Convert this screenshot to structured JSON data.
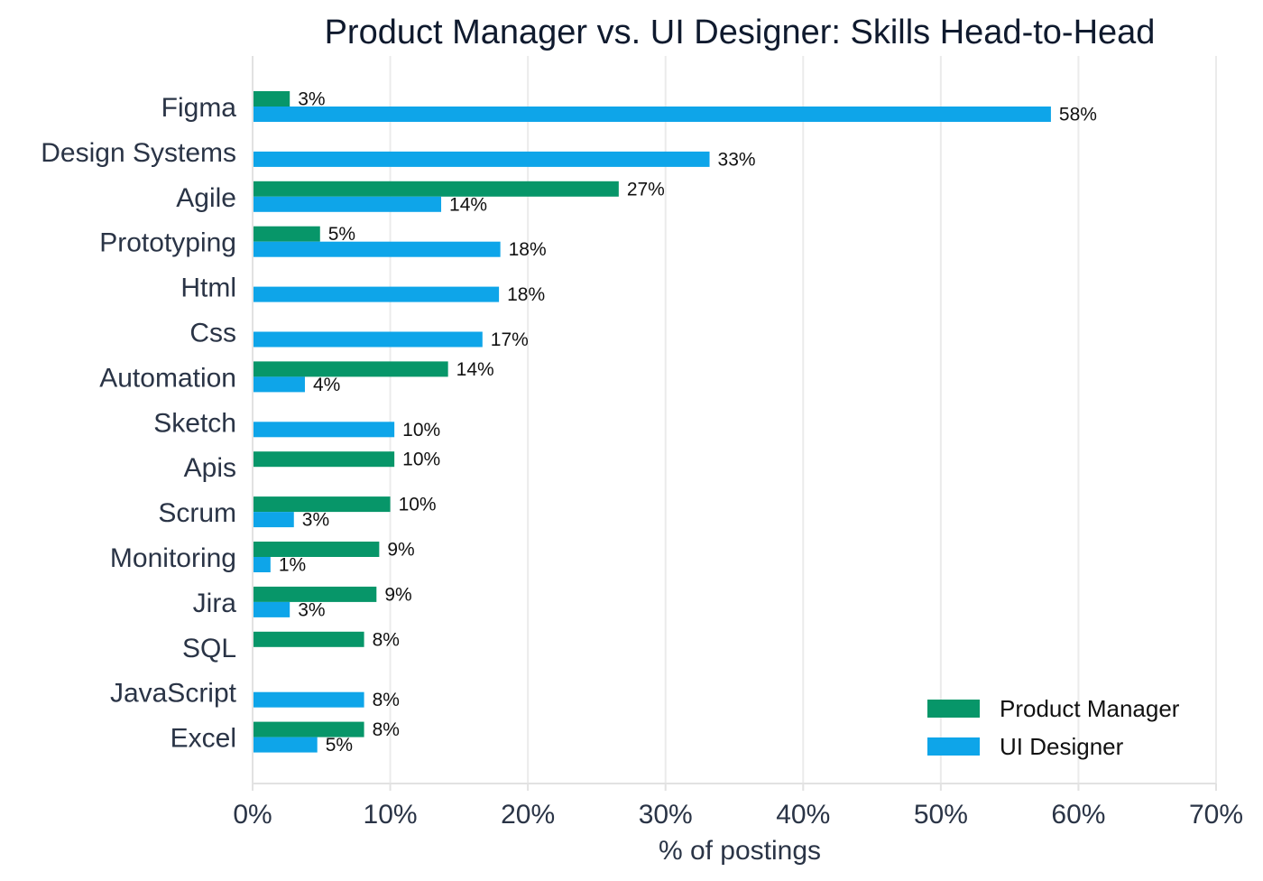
{
  "chart_data": {
    "type": "bar",
    "orientation": "horizontal",
    "title": "Product Manager vs. UI Designer: Skills Head-to-Head",
    "xlabel": "% of postings",
    "ylabel": "",
    "xlim": [
      0,
      70
    ],
    "xticks": [
      0,
      10,
      20,
      30,
      40,
      50,
      60,
      70
    ],
    "tick_suffix": "%",
    "grid": "vertical",
    "legend_position": "bottom-right",
    "categories": [
      "Figma",
      "Design Systems",
      "Agile",
      "Prototyping",
      "Html",
      "Css",
      "Automation",
      "Sketch",
      "Apis",
      "Scrum",
      "Monitoring",
      "Jira",
      "SQL",
      "JavaScript",
      "Excel"
    ],
    "series": [
      {
        "name": "Product Manager",
        "color": "#079669",
        "values": [
          2.7,
          null,
          26.6,
          4.9,
          null,
          null,
          14.2,
          null,
          10.3,
          10.0,
          9.2,
          9.0,
          8.1,
          null,
          8.1
        ],
        "labels": [
          "3%",
          "",
          "27%",
          "5%",
          "",
          "",
          "14%",
          "",
          "10%",
          "10%",
          "9%",
          "9%",
          "8%",
          "",
          "8%"
        ]
      },
      {
        "name": "UI Designer",
        "color": "#0ea5e9",
        "values": [
          58.0,
          33.2,
          13.7,
          18.0,
          17.9,
          16.7,
          3.8,
          10.3,
          null,
          3.0,
          1.3,
          2.7,
          null,
          8.1,
          4.7
        ],
        "labels": [
          "58%",
          "33%",
          "14%",
          "18%",
          "18%",
          "17%",
          "4%",
          "10%",
          "",
          "3%",
          "1%",
          "3%",
          "",
          "8%",
          "5%"
        ]
      }
    ]
  }
}
